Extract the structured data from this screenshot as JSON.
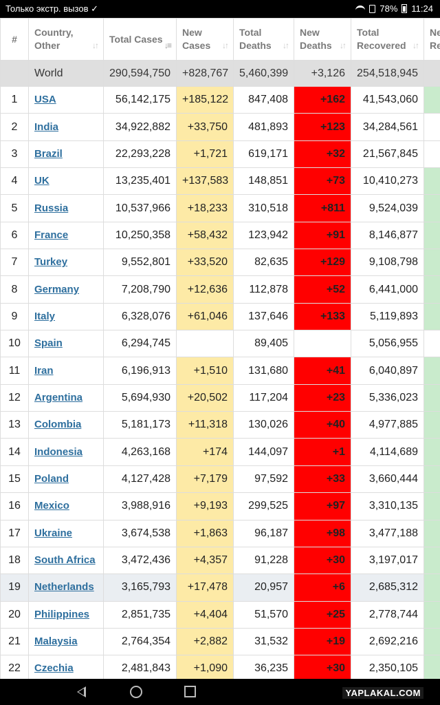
{
  "status_bar": {
    "left_text": "Только экстр. вызов ✓",
    "battery": "78%",
    "time": "11:24"
  },
  "table": {
    "headers": [
      {
        "label": "#"
      },
      {
        "label": "Country, Other"
      },
      {
        "label": "Total Cases"
      },
      {
        "label": "New Cases"
      },
      {
        "label": "Total Deaths"
      },
      {
        "label": "New Deaths"
      },
      {
        "label": "Total Recovered"
      },
      {
        "label": "Ne Re"
      }
    ],
    "world": {
      "name": "World",
      "total_cases": "290,594,750",
      "new_cases": "+828,767",
      "total_deaths": "5,460,399",
      "new_deaths": "+3,126",
      "total_recovered": "254,518,945"
    },
    "rows": [
      {
        "rank": "1",
        "country": "USA",
        "total_cases": "56,142,175",
        "new_cases": "+185,122",
        "total_deaths": "847,408",
        "new_deaths": "+162",
        "total_recovered": "41,543,060",
        "ext": "green"
      },
      {
        "rank": "2",
        "country": "India",
        "total_cases": "34,922,882",
        "new_cases": "+33,750",
        "total_deaths": "481,893",
        "new_deaths": "+123",
        "total_recovered": "34,284,561",
        "ext": "blank"
      },
      {
        "rank": "3",
        "country": "Brazil",
        "total_cases": "22,293,228",
        "new_cases": "+1,721",
        "total_deaths": "619,171",
        "new_deaths": "+32",
        "total_recovered": "21,567,845",
        "ext": "blank"
      },
      {
        "rank": "4",
        "country": "UK",
        "total_cases": "13,235,401",
        "new_cases": "+137,583",
        "total_deaths": "148,851",
        "new_deaths": "+73",
        "total_recovered": "10,410,273",
        "ext": "green"
      },
      {
        "rank": "5",
        "country": "Russia",
        "total_cases": "10,537,966",
        "new_cases": "+18,233",
        "total_deaths": "310,518",
        "new_deaths": "+811",
        "total_recovered": "9,524,039",
        "ext": "green"
      },
      {
        "rank": "6",
        "country": "France",
        "total_cases": "10,250,358",
        "new_cases": "+58,432",
        "total_deaths": "123,942",
        "new_deaths": "+91",
        "total_recovered": "8,146,877",
        "ext": "green"
      },
      {
        "rank": "7",
        "country": "Turkey",
        "total_cases": "9,552,801",
        "new_cases": "+33,520",
        "total_deaths": "82,635",
        "new_deaths": "+129",
        "total_recovered": "9,108,798",
        "ext": "green"
      },
      {
        "rank": "8",
        "country": "Germany",
        "total_cases": "7,208,790",
        "new_cases": "+12,636",
        "total_deaths": "112,878",
        "new_deaths": "+52",
        "total_recovered": "6,441,000",
        "ext": "green"
      },
      {
        "rank": "9",
        "country": "Italy",
        "total_cases": "6,328,076",
        "new_cases": "+61,046",
        "total_deaths": "137,646",
        "new_deaths": "+133",
        "total_recovered": "5,119,893",
        "ext": "green"
      },
      {
        "rank": "10",
        "country": "Spain",
        "total_cases": "6,294,745",
        "new_cases": "",
        "total_deaths": "89,405",
        "new_deaths": "",
        "total_recovered": "5,056,955",
        "ext": "blank"
      },
      {
        "rank": "11",
        "country": "Iran",
        "total_cases": "6,196,913",
        "new_cases": "+1,510",
        "total_deaths": "131,680",
        "new_deaths": "+41",
        "total_recovered": "6,040,897",
        "ext": "green"
      },
      {
        "rank": "12",
        "country": "Argentina",
        "total_cases": "5,694,930",
        "new_cases": "+20,502",
        "total_deaths": "117,204",
        "new_deaths": "+23",
        "total_recovered": "5,336,023",
        "ext": "green"
      },
      {
        "rank": "13",
        "country": "Colombia",
        "total_cases": "5,181,173",
        "new_cases": "+11,318",
        "total_deaths": "130,026",
        "new_deaths": "+40",
        "total_recovered": "4,977,885",
        "ext": "green"
      },
      {
        "rank": "14",
        "country": "Indonesia",
        "total_cases": "4,263,168",
        "new_cases": "+174",
        "total_deaths": "144,097",
        "new_deaths": "+1",
        "total_recovered": "4,114,689",
        "ext": "green"
      },
      {
        "rank": "15",
        "country": "Poland",
        "total_cases": "4,127,428",
        "new_cases": "+7,179",
        "total_deaths": "97,592",
        "new_deaths": "+33",
        "total_recovered": "3,660,444",
        "ext": "green"
      },
      {
        "rank": "16",
        "country": "Mexico",
        "total_cases": "3,988,916",
        "new_cases": "+9,193",
        "total_deaths": "299,525",
        "new_deaths": "+97",
        "total_recovered": "3,310,135",
        "ext": "green"
      },
      {
        "rank": "17",
        "country": "Ukraine",
        "total_cases": "3,674,538",
        "new_cases": "+1,863",
        "total_deaths": "96,187",
        "new_deaths": "+98",
        "total_recovered": "3,477,188",
        "ext": "green"
      },
      {
        "rank": "18",
        "country": "South Africa",
        "total_cases": "3,472,436",
        "new_cases": "+4,357",
        "total_deaths": "91,228",
        "new_deaths": "+30",
        "total_recovered": "3,197,017",
        "ext": "green"
      },
      {
        "rank": "19",
        "country": "Netherlands",
        "total_cases": "3,165,793",
        "new_cases": "+17,478",
        "total_deaths": "20,957",
        "new_deaths": "+6",
        "total_recovered": "2,685,312",
        "ext": "green",
        "highlight": true
      },
      {
        "rank": "20",
        "country": "Philippines",
        "total_cases": "2,851,735",
        "new_cases": "+4,404",
        "total_deaths": "51,570",
        "new_deaths": "+25",
        "total_recovered": "2,778,744",
        "ext": "green"
      },
      {
        "rank": "21",
        "country": "Malaysia",
        "total_cases": "2,764,354",
        "new_cases": "+2,882",
        "total_deaths": "31,532",
        "new_deaths": "+19",
        "total_recovered": "2,692,216",
        "ext": "green"
      },
      {
        "rank": "22",
        "country": "Czechia",
        "total_cases": "2,481,843",
        "new_cases": "+1,090",
        "total_deaths": "36,235",
        "new_deaths": "+30",
        "total_recovered": "2,350,105",
        "ext": "green"
      }
    ]
  },
  "colors": {
    "new_cases_bg": "#fdeaa6",
    "new_deaths_bg": "#ff0000",
    "ext_bg": "#c9ebcc",
    "link": "#2e6f9e",
    "world_bg": "#dfdfdf"
  },
  "nav": {
    "back_icon": "back-triangle-icon",
    "home_icon": "home-circle-icon",
    "recents_icon": "recents-square-icon"
  },
  "watermark": "YAPLAKAL.COM"
}
